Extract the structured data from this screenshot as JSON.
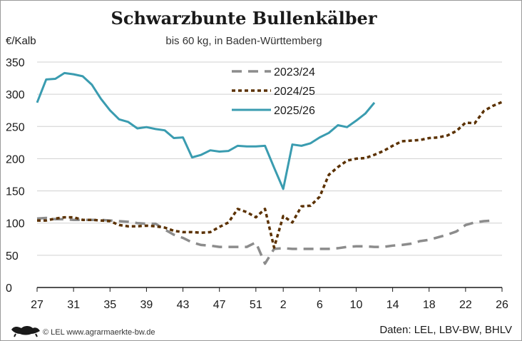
{
  "chart_data": {
    "type": "line",
    "title": "Schwarzbunte Bullenkälber",
    "subtitle": "bis 60 kg, in Baden-Württemberg",
    "ylabel": "€/Kalb",
    "ylim": [
      0,
      350
    ],
    "yticks": [
      0,
      50,
      100,
      150,
      200,
      250,
      300,
      350
    ],
    "x_tick_labels": [
      "27",
      "31",
      "35",
      "39",
      "43",
      "47",
      "51",
      "2",
      "6",
      "10",
      "14",
      "18",
      "22",
      "26"
    ],
    "x_weeks": [
      "27",
      "28",
      "29",
      "30",
      "31",
      "32",
      "33",
      "34",
      "35",
      "36",
      "37",
      "38",
      "39",
      "40",
      "41",
      "42",
      "43",
      "44",
      "45",
      "46",
      "47",
      "48",
      "49",
      "50",
      "51",
      "52",
      "1",
      "2",
      "3",
      "4",
      "5",
      "6",
      "7",
      "8",
      "9",
      "10",
      "11",
      "12",
      "13",
      "14",
      "15",
      "16",
      "17",
      "18",
      "19",
      "20",
      "21",
      "22",
      "23",
      "24",
      "25",
      "26"
    ],
    "grid": "horizontal",
    "legend_position": "top-center",
    "series": [
      {
        "name": "2023/24",
        "style": "dashed-long",
        "color": "#8c8c8c",
        "values": [
          107,
          108,
          106,
          106,
          105,
          105,
          105,
          105,
          104,
          103,
          102,
          100,
          99,
          99,
          90,
          82,
          77,
          70,
          66,
          65,
          63,
          63,
          63,
          63,
          70,
          37,
          60,
          61,
          60,
          60,
          60,
          60,
          60,
          61,
          63,
          64,
          64,
          63,
          63,
          65,
          66,
          68,
          72,
          74,
          78,
          82,
          87,
          97,
          101,
          103,
          104,
          null
        ]
      },
      {
        "name": "2024/25",
        "style": "dashed-short",
        "color": "#5b3100",
        "values": [
          104,
          104,
          107,
          109,
          109,
          105,
          105,
          104,
          103,
          97,
          95,
          95,
          96,
          95,
          93,
          88,
          86,
          86,
          85,
          86,
          94,
          101,
          122,
          117,
          109,
          122,
          62,
          111,
          101,
          126,
          127,
          141,
          175,
          187,
          197,
          200,
          201,
          206,
          212,
          220,
          227,
          228,
          229,
          232,
          233,
          236,
          243,
          256,
          255,
          274,
          282,
          288
        ]
      },
      {
        "name": "2025/26",
        "style": "solid",
        "color": "#3a9cb0",
        "values": [
          287,
          323,
          324,
          333,
          331,
          328,
          315,
          293,
          275,
          261,
          257,
          247,
          249,
          246,
          244,
          232,
          233,
          202,
          206,
          213,
          211,
          212,
          220,
          219,
          219,
          220,
          186,
          153,
          222,
          220,
          224,
          233,
          240,
          252,
          249,
          259,
          270,
          287,
          null,
          null,
          null,
          null,
          null,
          null,
          null,
          null,
          null,
          null,
          null,
          null,
          null,
          null
        ]
      }
    ]
  },
  "footer": {
    "copyright": "© LEL www.agrarmaerkte-bw.de",
    "source": "Daten: LEL, LBV-BW, BHLV"
  },
  "colors": {
    "grid": "#d0d0d0",
    "axis": "#1a1a1a",
    "frame": "#9a9a9a"
  }
}
